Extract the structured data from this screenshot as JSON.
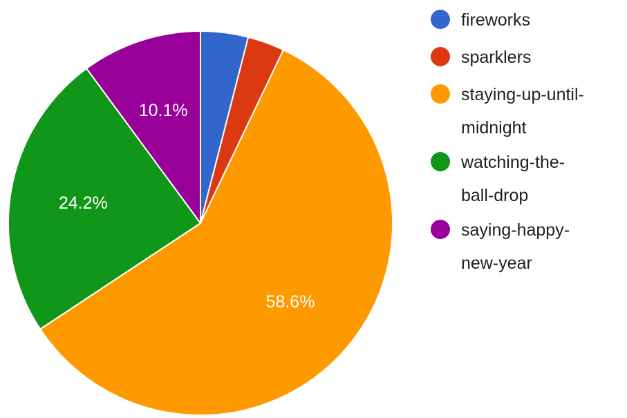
{
  "chart_data": {
    "type": "pie",
    "title": "",
    "legend_position": "right",
    "slices": [
      {
        "label": "fireworks",
        "value": 4.0,
        "color": "#3366cc",
        "display": ""
      },
      {
        "label": "sparklers",
        "value": 3.1,
        "color": "#dc3912",
        "display": ""
      },
      {
        "label": "staying-up-until-midnight",
        "value": 58.6,
        "color": "#ff9900",
        "display": "58.6%"
      },
      {
        "label": "watching-the-ball-drop",
        "value": 24.2,
        "color": "#109618",
        "display": "24.2%"
      },
      {
        "label": "saying-happy-new-year",
        "value": 10.1,
        "color": "#990099",
        "display": "10.1%"
      }
    ],
    "legend_lines": [
      [
        "fireworks"
      ],
      [
        "sparklers"
      ],
      [
        "staying-up-until-",
        "midnight"
      ],
      [
        "watching-the-",
        "ball-drop"
      ],
      [
        "saying-happy-",
        "new-year"
      ]
    ]
  }
}
